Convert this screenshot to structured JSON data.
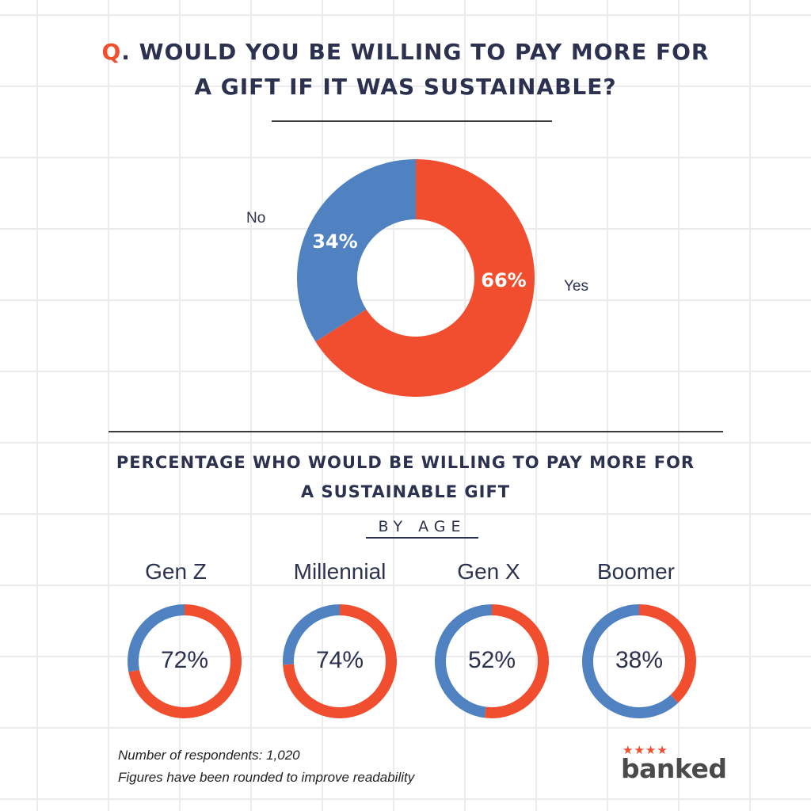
{
  "title": {
    "q_marker": "Q",
    "line1_rest": ". WOULD YOU BE WILLING TO PAY MORE FOR",
    "line2": "A GIFT IF IT WAS SUSTAINABLE?"
  },
  "subtitle": {
    "line1": "PERCENTAGE WHO WOULD BE WILLING TO PAY MORE FOR",
    "line2": "A SUSTAINABLE GIFT"
  },
  "by_age_label": "BY AGE",
  "notes": {
    "respondents": "Number of respondents: 1,020",
    "rounding": "Figures have been rounded to improve readability"
  },
  "logo": {
    "stars": "★★★★",
    "text": "banked"
  },
  "colors": {
    "yes": "#f04e2e",
    "no": "#5082c1",
    "text": "#2c3150"
  },
  "chart_data": [
    {
      "type": "pie",
      "donut": true,
      "labels": [
        "Yes",
        "No"
      ],
      "values": [
        66,
        34
      ],
      "data_labels": [
        "66%",
        "34%"
      ]
    },
    {
      "type": "pie",
      "donut": true,
      "categories": [
        "Gen Z",
        "Millennial",
        "Gen X",
        "Boomer"
      ],
      "values": [
        72,
        74,
        52,
        38
      ],
      "data_labels": [
        "72%",
        "74%",
        "52%",
        "38%"
      ]
    }
  ]
}
